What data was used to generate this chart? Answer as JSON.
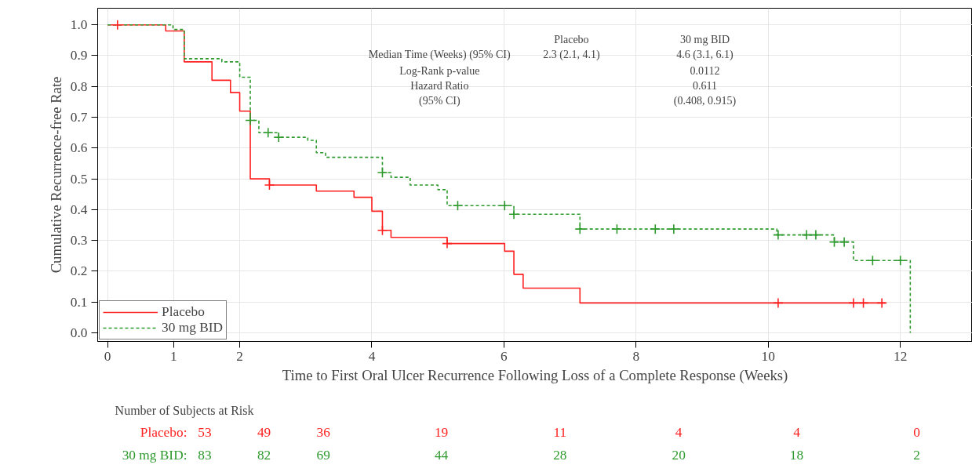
{
  "chart_data": {
    "type": "step",
    "xlabel": "Time to First Oral Ulcer Recurrence Following Loss of a Complete Response (Weeks)",
    "ylabel": "Cumulative Recurrence-free Rate",
    "xlim": [
      -0.15,
      13.09
    ],
    "ylim": [
      -0.028,
      1.054
    ],
    "xticks": [
      0,
      1,
      2,
      4,
      6,
      8,
      10,
      12
    ],
    "yticks": [
      {
        "value": 0,
        "label": "0.0"
      },
      0.1,
      0.2,
      0.3,
      0.4,
      0.5,
      0.6,
      0.7,
      0.8,
      0.9,
      {
        "value": 1,
        "label": "1.0"
      }
    ],
    "grid": true,
    "legend": "bottom left",
    "series": [
      {
        "name": "Placebo",
        "color": "#ff2020",
        "line_style": "solid",
        "x": [
          0,
          0.88,
          1.16,
          1.58,
          1.86,
          2.0,
          2.16,
          2.45,
          3.16,
          3.73,
          4.0,
          4.16,
          4.29,
          5.14,
          6.01,
          6.15,
          6.29,
          7.15,
          11.77
        ],
        "values": [
          1.0,
          0.98,
          0.88,
          0.82,
          0.78,
          0.72,
          0.5,
          0.48,
          0.46,
          0.44,
          0.395,
          0.333,
          0.31,
          0.29,
          0.265,
          0.19,
          0.145,
          0.097,
          0.097
        ]
      },
      {
        "name": "30 mg BID",
        "color": "#2e9a2e",
        "line_style": "dashed",
        "x": [
          0,
          0.99,
          1.16,
          1.73,
          2.0,
          2.16,
          2.29,
          2.59,
          3.03,
          3.16,
          3.3,
          4.16,
          4.29,
          4.58,
          5.0,
          5.14,
          6.15,
          7.15,
          10.13,
          11.0,
          11.29,
          12.15
        ],
        "values": [
          1.0,
          0.985,
          0.89,
          0.88,
          0.83,
          0.69,
          0.65,
          0.635,
          0.625,
          0.585,
          0.57,
          0.52,
          0.505,
          0.48,
          0.465,
          0.413,
          0.385,
          0.337,
          0.318,
          0.295,
          0.235,
          0.0
        ]
      },
      {
        "type": "scatter",
        "marker": "cross",
        "color": "#ff2020",
        "x": [
          0.15,
          2.45,
          4.16,
          5.14,
          10.15,
          11.29,
          11.44,
          11.72
        ],
        "values": [
          1.0,
          0.48,
          0.333,
          0.29,
          0.097,
          0.097,
          0.097,
          0.097
        ]
      },
      {
        "type": "scatter",
        "marker": "cross",
        "color": "#2e9a2e",
        "x": [
          2.16,
          2.43,
          2.59,
          4.16,
          5.3,
          6.01,
          6.15,
          7.15,
          7.71,
          8.29,
          8.57,
          10.15,
          10.58,
          10.72,
          11.0,
          11.15,
          11.58,
          12.0
        ],
        "values": [
          0.69,
          0.65,
          0.635,
          0.52,
          0.413,
          0.413,
          0.385,
          0.337,
          0.337,
          0.337,
          0.337,
          0.318,
          0.318,
          0.318,
          0.295,
          0.295,
          0.235,
          0.235
        ]
      }
    ],
    "annotations": [
      "Placebo",
      "30 mg BID",
      "Median Time (Weeks) (95% CI)",
      "2.3 (2.1, 4.1)",
      "4.6 (3.1, 6.1)",
      "Log-Rank p-value",
      "0.0112",
      "Hazard Ratio",
      "0.611",
      "(95% CI)",
      "(0.408, 0.915)",
      "Number of Subjects at Risk",
      "Placebo:",
      "53",
      "49",
      "36",
      "19",
      "11",
      "4",
      "4",
      "0",
      "30 mg BID:",
      "83",
      "82",
      "69",
      "44",
      "28",
      "20",
      "18",
      "2"
    ]
  }
}
